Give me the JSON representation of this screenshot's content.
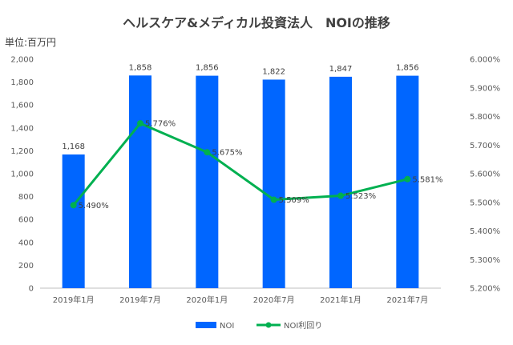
{
  "chart_data": {
    "type": "bar+line",
    "title": "ヘルスケア&メディカル投資法人　NOIの推移",
    "unit_label": "単位:百万円",
    "categories": [
      "2019年1月",
      "2019年7月",
      "2020年1月",
      "2020年7月",
      "2021年1月",
      "2021年7月"
    ],
    "series": [
      {
        "name": "NOI",
        "type": "bar",
        "axis": "left",
        "color": "#0066ff",
        "values": [
          1168,
          1858,
          1856,
          1822,
          1847,
          1856
        ],
        "labels": [
          "1,168",
          "1,858",
          "1,856",
          "1,822",
          "1,847",
          "1,856"
        ]
      },
      {
        "name": "NOI利回り",
        "type": "line",
        "axis": "right",
        "color": "#00b050",
        "values": [
          5.49,
          5.776,
          5.675,
          5.509,
          5.523,
          5.581
        ],
        "labels": [
          "5.490%",
          "5.776%",
          "5.675%",
          "5.509%",
          "5.523%",
          "5.581%"
        ]
      }
    ],
    "y_left": {
      "ylim": [
        0,
        2000
      ],
      "ticks": [
        0,
        200,
        400,
        600,
        800,
        1000,
        1200,
        1400,
        1600,
        1800,
        2000
      ],
      "tick_labels": [
        "0",
        "200",
        "400",
        "600",
        "800",
        "1,000",
        "1,200",
        "1,400",
        "1,600",
        "1,800",
        "2,000"
      ]
    },
    "y_right": {
      "ylim": [
        5.2,
        6.0
      ],
      "ticks": [
        5.2,
        5.3,
        5.4,
        5.5,
        5.6,
        5.7,
        5.8,
        5.9,
        6.0
      ],
      "tick_labels": [
        "5.200%",
        "5.300%",
        "5.400%",
        "5.500%",
        "5.600%",
        "5.700%",
        "5.800%",
        "5.900%",
        "6.000%"
      ]
    },
    "grid": false,
    "legend_position": "bottom"
  }
}
